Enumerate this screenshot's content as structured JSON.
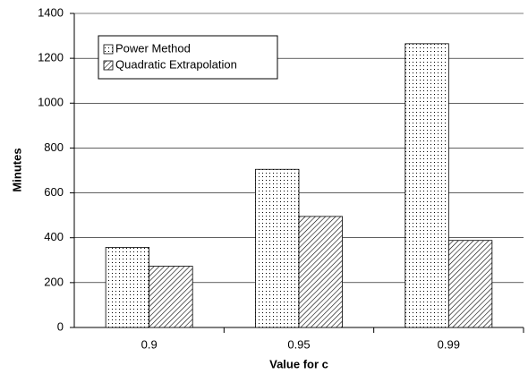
{
  "chart_data": {
    "type": "bar",
    "x_label": "Value for c",
    "y_label": "Minutes",
    "categories": [
      "0.9",
      "0.95",
      "0.99"
    ],
    "series": [
      {
        "name": "Power Method",
        "color": "#000000",
        "pattern": "dots",
        "values": [
          357,
          705,
          1265
        ]
      },
      {
        "name": "Quadratic Extrapolation",
        "color": "#000000",
        "pattern": "hatch",
        "values": [
          273,
          495,
          388
        ]
      }
    ],
    "ylim": [
      0,
      1400
    ],
    "yticks": [
      0,
      200,
      400,
      600,
      800,
      1000,
      1200,
      1400
    ],
    "grid": true,
    "legend": "upper left"
  }
}
